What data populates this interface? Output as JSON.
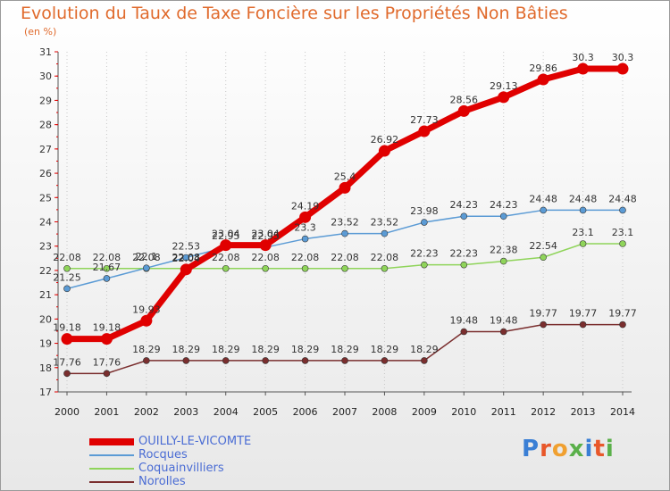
{
  "header": {
    "title": "Evolution du Taux de Taxe Foncière sur les Propriétés Non Bâties",
    "subtitle": "(en %)"
  },
  "logo": {
    "text": "Proxiti",
    "colors": [
      "#3a7fd5",
      "#e8572a",
      "#f0a030",
      "#5ab04a",
      "#3a7fd5",
      "#e8572a",
      "#5ab04a"
    ]
  },
  "chart_data": {
    "type": "line",
    "x": [
      "2000",
      "2001",
      "2002",
      "2003",
      "2004",
      "2005",
      "2006",
      "2007",
      "2008",
      "2009",
      "2010",
      "2011",
      "2012",
      "2013",
      "2014"
    ],
    "ylim": [
      17,
      31
    ],
    "yticks": [
      "17",
      "18",
      "19",
      "20",
      "21",
      "22",
      "23",
      "24",
      "25",
      "26",
      "27",
      "28",
      "29",
      "30",
      "31"
    ],
    "grid": "vertical dotted",
    "legend_position": "bottom-left",
    "series": [
      {
        "name": "OUILLY-LE-VICOMTE",
        "color": "#e00000",
        "values": [
          19.18,
          19.18,
          19.93,
          22.04,
          23.04,
          23.04,
          24.19,
          25.4,
          26.92,
          27.73,
          28.56,
          29.13,
          29.86,
          30.3,
          30.3
        ],
        "labels": [
          "19.18",
          "19.18",
          "19.93",
          "22.04",
          "23.04",
          "23.04",
          "24.19",
          "25.4",
          "26.92",
          "27.73",
          "28.56",
          "29.13",
          "29.86",
          "30.3",
          "30.3"
        ]
      },
      {
        "name": "Rocques",
        "color": "#5b9bd5",
        "values": [
          21.25,
          21.67,
          22.1,
          22.53,
          22.95,
          22.95,
          23.3,
          23.52,
          23.52,
          23.98,
          24.23,
          24.23,
          24.48,
          24.48,
          24.48
        ],
        "labels": [
          "21.25",
          "21.67",
          "22.1",
          "22.53",
          "22.95",
          "22.95",
          "23.3",
          "23.52",
          "23.52",
          "23.98",
          "24.23",
          "24.23",
          "24.48",
          "24.48",
          "24.48"
        ]
      },
      {
        "name": "Coquainvilliers",
        "color": "#8fd45a",
        "values": [
          22.08,
          22.08,
          22.08,
          22.08,
          22.08,
          22.08,
          22.08,
          22.08,
          22.08,
          22.23,
          22.23,
          22.38,
          22.54,
          23.1,
          23.1
        ],
        "labels": [
          "22.08",
          "22.08",
          "22.08",
          "22.08",
          "22.08",
          "22.08",
          "22.08",
          "22.08",
          "22.08",
          "22.23",
          "22.23",
          "22.38",
          "22.54",
          "23.1",
          "23.1"
        ]
      },
      {
        "name": "Norolles",
        "color": "#7a2e2e",
        "values": [
          17.76,
          17.76,
          18.29,
          18.29,
          18.29,
          18.29,
          18.29,
          18.29,
          18.29,
          18.29,
          19.48,
          19.48,
          19.77,
          19.77,
          19.77
        ],
        "labels": [
          "17.76",
          "17.76",
          "18.29",
          "18.29",
          "18.29",
          "18.29",
          "18.29",
          "18.29",
          "18.29",
          "18.29",
          "19.48",
          "19.48",
          "19.77",
          "19.77",
          "19.77"
        ]
      }
    ]
  }
}
